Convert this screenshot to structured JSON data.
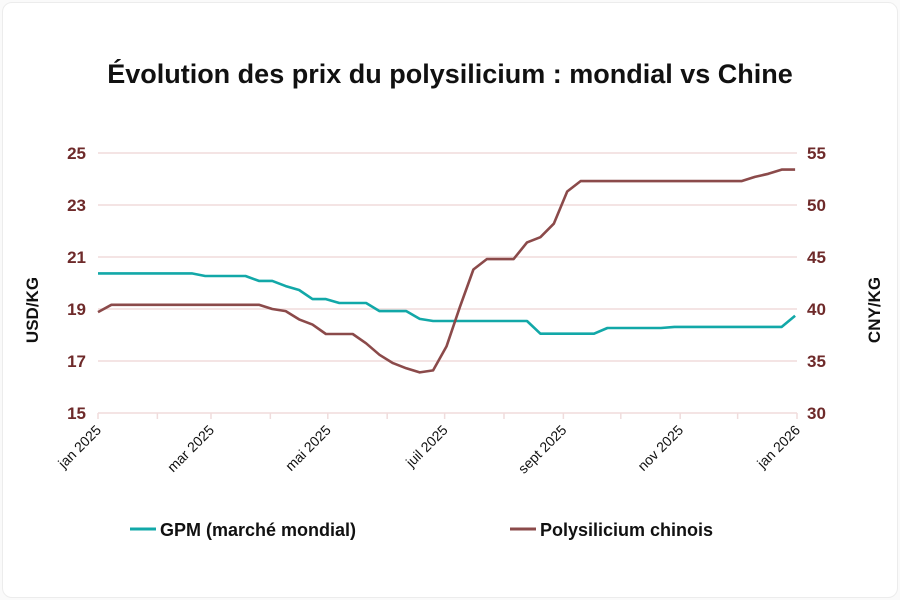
{
  "chart_data": {
    "type": "line",
    "title": "Évolution des prix du polysilicium : mondial vs Chine",
    "ylabel_left": "USD/KG",
    "ylabel_right": "CNY/KG",
    "ylim_left": [
      15,
      25
    ],
    "ylim_right": [
      30,
      55
    ],
    "yticks_left": [
      "15",
      "17",
      "19",
      "21",
      "23",
      "25"
    ],
    "yticks_right": [
      "30",
      "35",
      "40",
      "45",
      "50",
      "55"
    ],
    "xlim": [
      "2025-01-01",
      "2026-01-01"
    ],
    "xticks": [
      "jan 2025",
      "mar 2025",
      "mai 2025",
      "juil 2025",
      "sept 2025",
      "nov 2025",
      "jan 2026"
    ],
    "grid": true,
    "legend_position": "bottom",
    "x": [
      "2025-01-01",
      "2025-01-08",
      "2025-01-15",
      "2025-01-22",
      "2025-01-29",
      "2025-02-05",
      "2025-02-12",
      "2025-02-19",
      "2025-02-26",
      "2025-03-05",
      "2025-03-12",
      "2025-03-19",
      "2025-03-26",
      "2025-04-02",
      "2025-04-09",
      "2025-04-16",
      "2025-04-23",
      "2025-04-30",
      "2025-05-07",
      "2025-05-14",
      "2025-05-21",
      "2025-05-28",
      "2025-06-04",
      "2025-06-11",
      "2025-06-18",
      "2025-06-25",
      "2025-07-02",
      "2025-07-09",
      "2025-07-16",
      "2025-07-23",
      "2025-07-30",
      "2025-08-06",
      "2025-08-13",
      "2025-08-20",
      "2025-08-27",
      "2025-09-03",
      "2025-09-10",
      "2025-09-17",
      "2025-09-24",
      "2025-10-01",
      "2025-10-08",
      "2025-10-15",
      "2025-10-22",
      "2025-10-29",
      "2025-11-05",
      "2025-11-12",
      "2025-11-19",
      "2025-11-26",
      "2025-12-03",
      "2025-12-10",
      "2025-12-17",
      "2025-12-24",
      "2025-12-31"
    ],
    "series": [
      {
        "name": "GPM (marché mondial)",
        "axis": "left",
        "color": "#12a8a8",
        "values": [
          20.37,
          20.37,
          20.37,
          20.37,
          20.37,
          20.37,
          20.37,
          20.37,
          20.27,
          20.27,
          20.27,
          20.27,
          20.08,
          20.08,
          19.88,
          19.73,
          19.38,
          19.38,
          19.23,
          19.23,
          19.23,
          18.92,
          18.92,
          18.92,
          18.62,
          18.54,
          18.54,
          18.54,
          18.54,
          18.54,
          18.54,
          18.54,
          18.54,
          18.05,
          18.05,
          18.05,
          18.05,
          18.05,
          18.27,
          18.27,
          18.27,
          18.27,
          18.27,
          18.31,
          18.31,
          18.31,
          18.31,
          18.31,
          18.31,
          18.31,
          18.31,
          18.31,
          18.74
        ]
      },
      {
        "name": "Polysilicium chinois",
        "axis": "right",
        "color": "#8b4a4a",
        "values": [
          39.7,
          40.4,
          40.4,
          40.4,
          40.4,
          40.4,
          40.4,
          40.4,
          40.4,
          40.4,
          40.4,
          40.4,
          40.4,
          40.0,
          39.8,
          39.0,
          38.5,
          37.6,
          37.6,
          37.6,
          36.7,
          35.6,
          34.8,
          34.3,
          33.9,
          34.1,
          36.4,
          40.2,
          43.8,
          44.8,
          44.8,
          44.8,
          46.4,
          46.9,
          48.2,
          51.3,
          52.3,
          52.3,
          52.3,
          52.3,
          52.3,
          52.3,
          52.3,
          52.3,
          52.3,
          52.3,
          52.3,
          52.3,
          52.3,
          52.7,
          53.0,
          53.4,
          53.4
        ]
      }
    ],
    "colors": {
      "grid": "#f0dcdc",
      "tick_label": "#6e2a2a"
    }
  }
}
